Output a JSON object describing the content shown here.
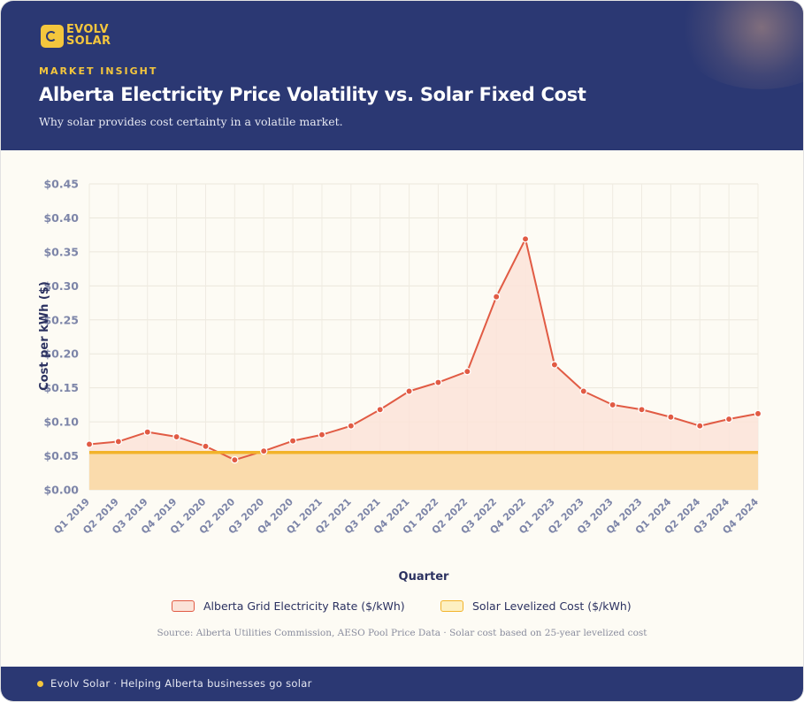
{
  "brand": {
    "logo_line1": "EVOLV",
    "logo_line2": "SOLAR"
  },
  "header": {
    "eyebrow": "MARKET INSIGHT",
    "title": "Alberta Electricity Price Volatility vs. Solar Fixed Cost",
    "subtitle": "Why solar provides cost certainty in a volatile market."
  },
  "colors": {
    "header_bg": "#2b3873",
    "accent_yellow": "#f4c63d",
    "grid_line": "#e15b44",
    "grid_fill": "#fbe3d8",
    "solar_line": "#f2b32a",
    "solar_fill": "#f9d9a6"
  },
  "chart_data": {
    "type": "area",
    "xlabel": "Quarter",
    "ylabel": "Cost per kWh ($)",
    "ylim": [
      0,
      0.45
    ],
    "yticks": [
      0,
      0.05,
      0.1,
      0.15,
      0.2,
      0.25,
      0.3,
      0.35,
      0.4,
      0.45
    ],
    "ytick_labels": [
      "$0.00",
      "$0.05",
      "$0.10",
      "$0.15",
      "$0.20",
      "$0.25",
      "$0.30",
      "$0.35",
      "$0.40",
      "$0.45"
    ],
    "grid": true,
    "legend_position": "bottom",
    "categories": [
      "Q1 2019",
      "Q2 2019",
      "Q3 2019",
      "Q4 2019",
      "Q1 2020",
      "Q2 2020",
      "Q3 2020",
      "Q4 2020",
      "Q1 2021",
      "Q2 2021",
      "Q3 2021",
      "Q4 2021",
      "Q1 2022",
      "Q2 2022",
      "Q3 2022",
      "Q4 2022",
      "Q1 2023",
      "Q2 2023",
      "Q3 2023",
      "Q4 2023",
      "Q1 2024",
      "Q2 2024",
      "Q3 2024",
      "Q4 2024"
    ],
    "series": [
      {
        "name": "Alberta Grid Electricity Rate ($/kWh)",
        "values": [
          0.067,
          0.071,
          0.085,
          0.078,
          0.064,
          0.044,
          0.057,
          0.072,
          0.081,
          0.094,
          0.118,
          0.145,
          0.158,
          0.174,
          0.284,
          0.369,
          0.184,
          0.145,
          0.125,
          0.118,
          0.107,
          0.094,
          0.104,
          0.112
        ]
      },
      {
        "name": "Solar Levelized Cost ($/kWh)",
        "values": [
          0.055,
          0.055,
          0.055,
          0.055,
          0.055,
          0.055,
          0.055,
          0.055,
          0.055,
          0.055,
          0.055,
          0.055,
          0.055,
          0.055,
          0.055,
          0.055,
          0.055,
          0.055,
          0.055,
          0.055,
          0.055,
          0.055,
          0.055,
          0.055
        ]
      }
    ]
  },
  "source": "Source: Alberta Utilities Commission, AESO Pool Price Data · Solar cost based on 25-year levelized cost",
  "footer": {
    "text": "Evolv Solar · Helping Alberta businesses go solar"
  }
}
